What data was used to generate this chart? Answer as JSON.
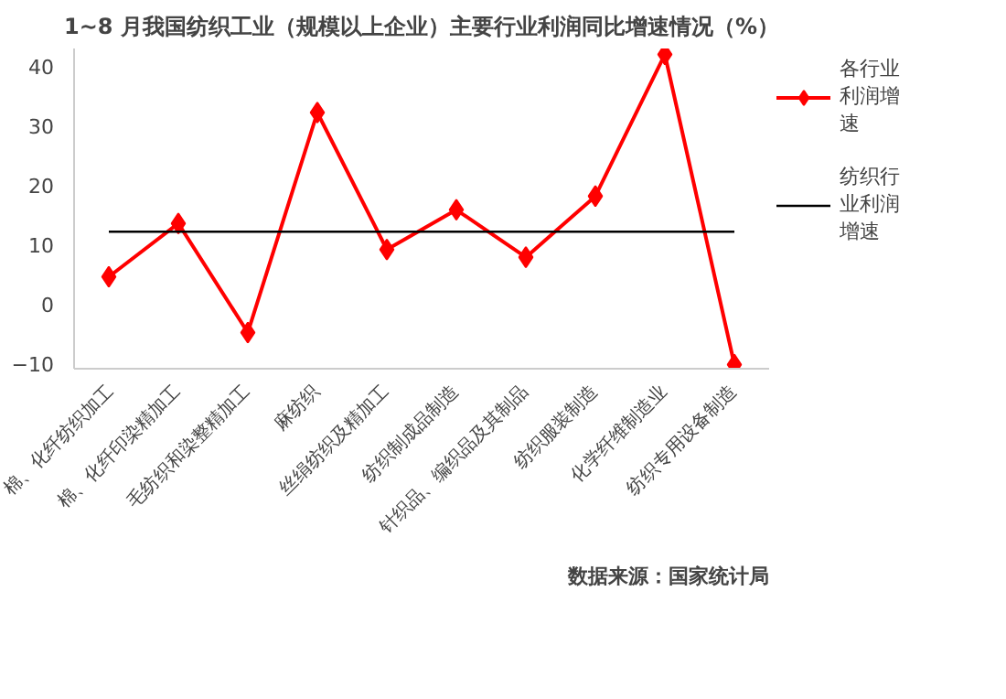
{
  "chart_data": {
    "type": "line",
    "title": "1~8 月我国纺织工业（规模以上企业）主要行业利润同比增速情况（%）",
    "categories": [
      "棉、化纤纺织加工",
      "棉、化纤印染精加工",
      "毛纺织和染整精加工",
      "麻纺织",
      "丝绢纺织及精加工",
      "纺织制成品制造",
      "针织品、编织品及其制品",
      "纺织服装制造",
      "化学纤维制造业",
      "纺织专用设备制造"
    ],
    "series": [
      {
        "name": "各行业利润增速",
        "color": "#ff0000",
        "marker": "diamond",
        "values": [
          4.5,
          13.5,
          -4.9,
          32.2,
          9.1,
          15.8,
          7.8,
          18.1,
          42,
          -10.3
        ]
      },
      {
        "name": "纺织行业利润增速",
        "color": "#000000",
        "marker": "none",
        "values": [
          12.1,
          12.1,
          12.1,
          12.1,
          12.1,
          12.1,
          12.1,
          12.1,
          12.1,
          12.1
        ]
      }
    ],
    "ylim": [
      -11,
      43
    ],
    "yticks": [
      -10,
      0,
      10,
      20,
      30,
      40
    ],
    "legend": "right",
    "annotations": [
      "数据来源：国家统计局"
    ]
  }
}
